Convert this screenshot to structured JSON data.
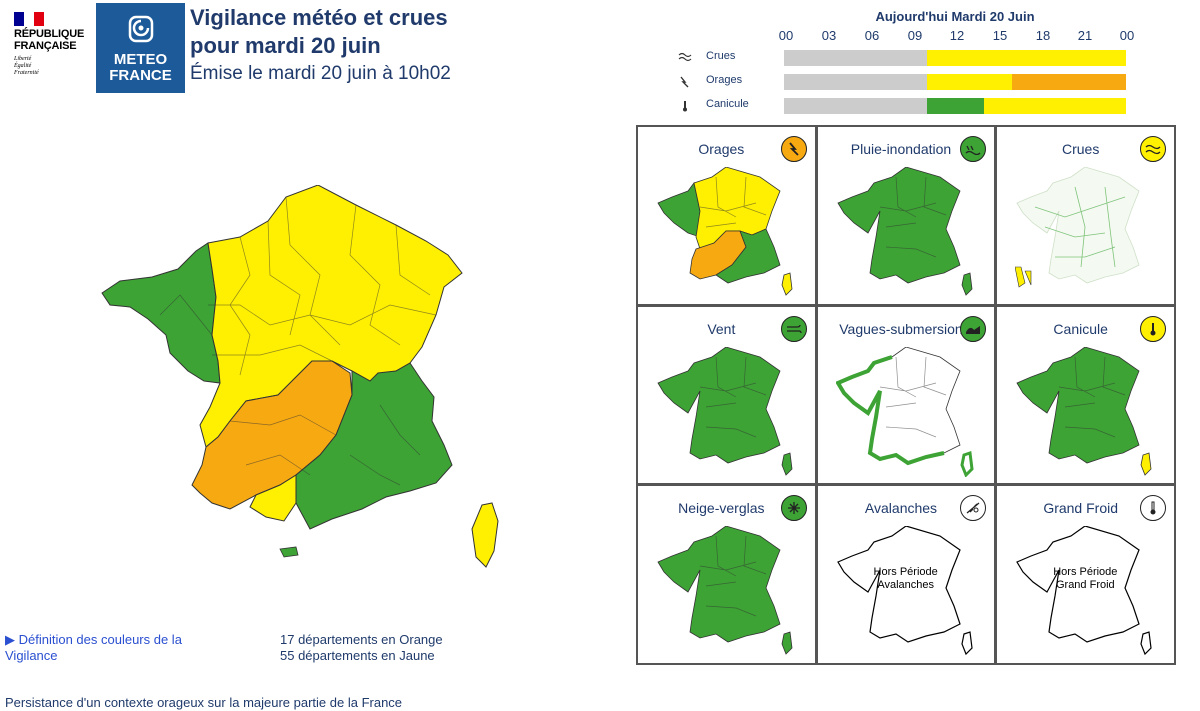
{
  "header": {
    "republique": {
      "name_lines": [
        "RÉPUBLIQUE",
        "FRANÇAISE"
      ],
      "motto_lines": [
        "Liberté",
        "Égalité",
        "Fraternité"
      ]
    },
    "meteo_logo": {
      "line1": "METEO",
      "line2": "FRANCE"
    },
    "title_line1": "Vigilance météo et crues",
    "title_line2": "pour mardi 20 juin",
    "emission": "Émise le mardi 20 juin à 10h02"
  },
  "timeline": {
    "title": "Aujourd'hui Mardi 20 Juin",
    "hours": [
      "00",
      "03",
      "06",
      "09",
      "12",
      "15",
      "18",
      "21",
      "00"
    ],
    "rows": [
      {
        "label": "Crues",
        "icon": "flood-icon",
        "segments": [
          {
            "from_h": 0,
            "to_h": 10,
            "level": "none"
          },
          {
            "from_h": 10,
            "to_h": 24,
            "level": "yellow"
          }
        ]
      },
      {
        "label": "Orages",
        "icon": "lightning-icon",
        "segments": [
          {
            "from_h": 0,
            "to_h": 10,
            "level": "none"
          },
          {
            "from_h": 10,
            "to_h": 16,
            "level": "yellow"
          },
          {
            "from_h": 16,
            "to_h": 24,
            "level": "orange"
          }
        ]
      },
      {
        "label": "Canicule",
        "icon": "thermometer-icon",
        "segments": [
          {
            "from_h": 0,
            "to_h": 10,
            "level": "none"
          },
          {
            "from_h": 10,
            "to_h": 14,
            "level": "green"
          },
          {
            "from_h": 14,
            "to_h": 24,
            "level": "yellow"
          }
        ]
      }
    ]
  },
  "level_colors": {
    "none": "#cccccc",
    "green": "#3da335",
    "yellow": "#ffef00",
    "orange": "#f7a912",
    "white": "#ffffff"
  },
  "phenomena": [
    {
      "label": "Orages",
      "icon": "lightning-icon",
      "level": "orange"
    },
    {
      "label": "Pluie-inondation",
      "icon": "rain-flood-icon",
      "level": "green"
    },
    {
      "label": "Crues",
      "icon": "waves-icon",
      "level": "yellow"
    },
    {
      "label": "Vent",
      "icon": "wind-icon",
      "level": "green"
    },
    {
      "label": "Vagues-submersion",
      "icon": "wave-submersion-icon",
      "level": "green"
    },
    {
      "label": "Canicule",
      "icon": "thermometer-icon",
      "level": "yellow"
    },
    {
      "label": "Neige-verglas",
      "icon": "snowflake-icon",
      "level": "green"
    },
    {
      "label": "Avalanches",
      "icon": "avalanche-icon",
      "level": "white",
      "note_lines": [
        "Hors Période",
        "Avalanches"
      ]
    },
    {
      "label": "Grand Froid",
      "icon": "cold-thermometer-icon",
      "level": "white",
      "note_lines": [
        "Hors Période",
        "Grand Froid"
      ]
    }
  ],
  "definition_link": "▶ Définition des couleurs de la Vigilance",
  "counts": {
    "orange": "17 départements en Orange",
    "yellow": "55 départements en Jaune"
  },
  "comment": "Persistance d'un contexte orageux sur la majeure partie de la France"
}
